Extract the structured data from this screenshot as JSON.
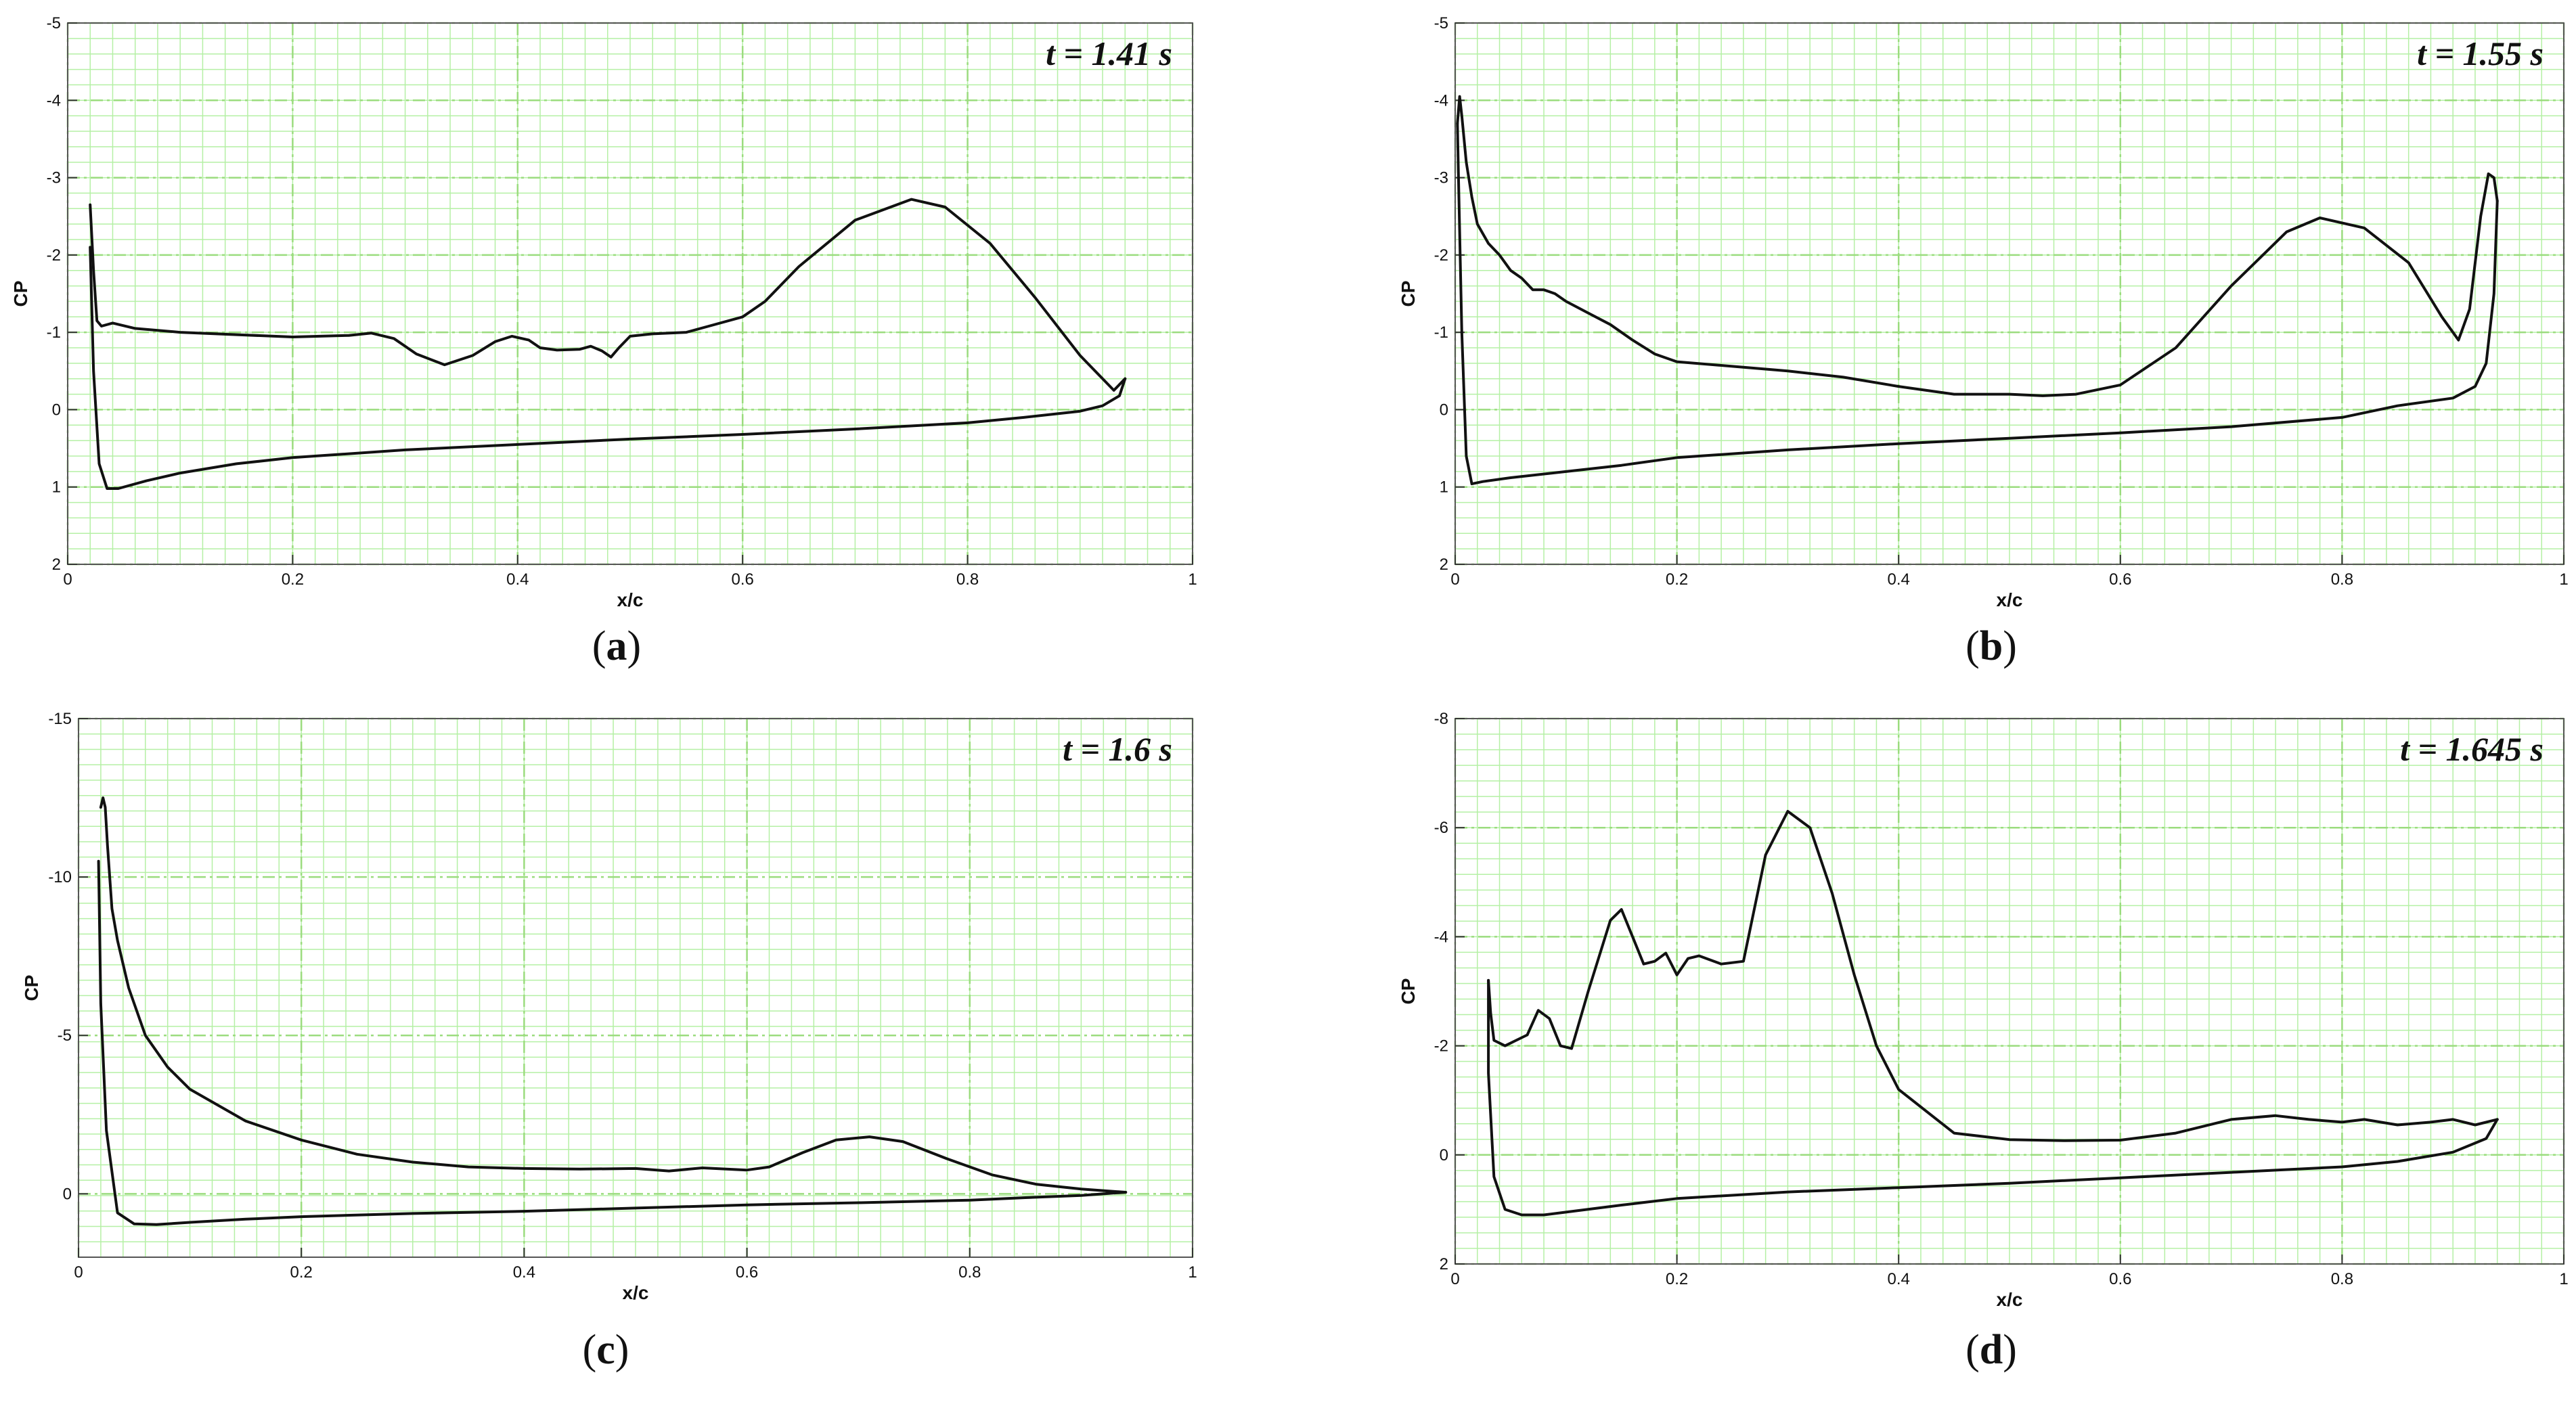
{
  "figure": {
    "background": "#ffffff",
    "grid_color": "#b5f0a5",
    "major_grid_color": "#9bdc7e",
    "curve_color": "#111111"
  },
  "chart_data": [
    {
      "type": "line",
      "panel": "a",
      "caption": "a",
      "annotation": "t = 1.41 s",
      "xlabel": "x/c",
      "ylabel": "CP",
      "xlim": [
        0,
        1
      ],
      "ylim": [
        -5,
        2
      ],
      "y_inverted": true,
      "x_ticks": [
        "0",
        "0.2",
        "0.4",
        "0.6",
        "0.8",
        "1"
      ],
      "y_ticks": [
        "-5",
        "-4",
        "-3",
        "-2",
        "-1",
        "0",
        "1",
        "2"
      ],
      "grid": true,
      "series": [
        {
          "values": [
            [
              0.02,
              -2.65
            ],
            [
              0.023,
              -1.8
            ],
            [
              0.026,
              -1.15
            ],
            [
              0.03,
              -1.08
            ],
            [
              0.04,
              -1.12
            ],
            [
              0.06,
              -1.05
            ],
            [
              0.1,
              -1.0
            ],
            [
              0.15,
              -0.97
            ],
            [
              0.2,
              -0.94
            ],
            [
              0.25,
              -0.96
            ],
            [
              0.27,
              -0.99
            ],
            [
              0.29,
              -0.92
            ],
            [
              0.31,
              -0.72
            ],
            [
              0.335,
              -0.58
            ],
            [
              0.36,
              -0.7
            ],
            [
              0.38,
              -0.88
            ],
            [
              0.395,
              -0.95
            ],
            [
              0.41,
              -0.9
            ],
            [
              0.42,
              -0.8
            ],
            [
              0.435,
              -0.77
            ],
            [
              0.455,
              -0.78
            ],
            [
              0.465,
              -0.82
            ],
            [
              0.475,
              -0.76
            ],
            [
              0.483,
              -0.68
            ],
            [
              0.49,
              -0.8
            ],
            [
              0.5,
              -0.95
            ],
            [
              0.52,
              -0.98
            ],
            [
              0.55,
              -1.0
            ],
            [
              0.57,
              -1.08
            ],
            [
              0.6,
              -1.2
            ],
            [
              0.62,
              -1.4
            ],
            [
              0.65,
              -1.85
            ],
            [
              0.7,
              -2.45
            ],
            [
              0.75,
              -2.72
            ],
            [
              0.78,
              -2.62
            ],
            [
              0.82,
              -2.15
            ],
            [
              0.86,
              -1.45
            ],
            [
              0.9,
              -0.7
            ],
            [
              0.93,
              -0.25
            ],
            [
              0.94,
              -0.4
            ]
          ]
        },
        {
          "values": [
            [
              0.94,
              -0.4
            ],
            [
              0.935,
              -0.18
            ],
            [
              0.92,
              -0.05
            ],
            [
              0.9,
              0.02
            ],
            [
              0.85,
              0.1
            ],
            [
              0.8,
              0.17
            ],
            [
              0.7,
              0.25
            ],
            [
              0.6,
              0.32
            ],
            [
              0.5,
              0.38
            ],
            [
              0.4,
              0.45
            ],
            [
              0.3,
              0.52
            ],
            [
              0.2,
              0.62
            ],
            [
              0.15,
              0.7
            ],
            [
              0.1,
              0.82
            ],
            [
              0.07,
              0.92
            ],
            [
              0.045,
              1.02
            ],
            [
              0.035,
              1.02
            ],
            [
              0.028,
              0.7
            ],
            [
              0.023,
              -0.5
            ],
            [
              0.02,
              -2.1
            ]
          ]
        }
      ]
    },
    {
      "type": "line",
      "panel": "b",
      "caption": "b",
      "annotation": "t = 1.55 s",
      "xlabel": "x/c",
      "ylabel": "CP",
      "xlim": [
        0,
        1
      ],
      "ylim": [
        -5,
        2
      ],
      "y_inverted": true,
      "x_ticks": [
        "0",
        "0.2",
        "0.4",
        "0.6",
        "0.8",
        "1"
      ],
      "y_ticks": [
        "-5",
        "-4",
        "-3",
        "-2",
        "-1",
        "0",
        "1",
        "2"
      ],
      "grid": true,
      "series": [
        {
          "values": [
            [
              0.002,
              -3.7
            ],
            [
              0.004,
              -4.05
            ],
            [
              0.006,
              -3.8
            ],
            [
              0.01,
              -3.2
            ],
            [
              0.015,
              -2.75
            ],
            [
              0.02,
              -2.4
            ],
            [
              0.03,
              -2.15
            ],
            [
              0.04,
              -2.0
            ],
            [
              0.05,
              -1.8
            ],
            [
              0.06,
              -1.7
            ],
            [
              0.07,
              -1.55
            ],
            [
              0.08,
              -1.55
            ],
            [
              0.09,
              -1.5
            ],
            [
              0.1,
              -1.4
            ],
            [
              0.12,
              -1.25
            ],
            [
              0.14,
              -1.1
            ],
            [
              0.16,
              -0.9
            ],
            [
              0.18,
              -0.72
            ],
            [
              0.2,
              -0.62
            ],
            [
              0.25,
              -0.56
            ],
            [
              0.3,
              -0.5
            ],
            [
              0.35,
              -0.42
            ],
            [
              0.4,
              -0.3
            ],
            [
              0.45,
              -0.2
            ],
            [
              0.5,
              -0.2
            ],
            [
              0.53,
              -0.18
            ],
            [
              0.56,
              -0.2
            ],
            [
              0.6,
              -0.32
            ],
            [
              0.65,
              -0.8
            ],
            [
              0.7,
              -1.6
            ],
            [
              0.75,
              -2.3
            ],
            [
              0.78,
              -2.48
            ],
            [
              0.82,
              -2.35
            ],
            [
              0.86,
              -1.9
            ],
            [
              0.89,
              -1.2
            ],
            [
              0.905,
              -0.9
            ],
            [
              0.915,
              -1.3
            ],
            [
              0.925,
              -2.5
            ],
            [
              0.932,
              -3.05
            ],
            [
              0.937,
              -3.0
            ],
            [
              0.94,
              -2.7
            ]
          ]
        },
        {
          "values": [
            [
              0.94,
              -2.7
            ],
            [
              0.937,
              -1.5
            ],
            [
              0.93,
              -0.6
            ],
            [
              0.92,
              -0.3
            ],
            [
              0.9,
              -0.15
            ],
            [
              0.85,
              -0.05
            ],
            [
              0.8,
              0.1
            ],
            [
              0.7,
              0.22
            ],
            [
              0.6,
              0.3
            ],
            [
              0.5,
              0.37
            ],
            [
              0.4,
              0.44
            ],
            [
              0.3,
              0.52
            ],
            [
              0.2,
              0.62
            ],
            [
              0.15,
              0.72
            ],
            [
              0.1,
              0.8
            ],
            [
              0.05,
              0.88
            ],
            [
              0.025,
              0.93
            ],
            [
              0.015,
              0.96
            ],
            [
              0.01,
              0.6
            ],
            [
              0.006,
              -1.0
            ],
            [
              0.003,
              -3.0
            ],
            [
              0.002,
              -3.7
            ]
          ]
        }
      ]
    },
    {
      "type": "line",
      "panel": "c",
      "caption": "c",
      "annotation": "t = 1.6 s",
      "xlabel": "x/c",
      "ylabel": "CP",
      "xlim": [
        0,
        1
      ],
      "ylim": [
        -15,
        2
      ],
      "y_inverted": true,
      "x_ticks": [
        "0",
        "0.2",
        "0.4",
        "0.6",
        "0.8",
        "1"
      ],
      "y_ticks": [
        "-15",
        "-10",
        "-5",
        "0"
      ],
      "grid": true,
      "series": [
        {
          "values": [
            [
              0.02,
              -12.2
            ],
            [
              0.022,
              -12.5
            ],
            [
              0.024,
              -12.2
            ],
            [
              0.026,
              -11.0
            ],
            [
              0.03,
              -9.0
            ],
            [
              0.035,
              -8.0
            ],
            [
              0.045,
              -6.5
            ],
            [
              0.06,
              -5.0
            ],
            [
              0.08,
              -4.0
            ],
            [
              0.1,
              -3.3
            ],
            [
              0.15,
              -2.3
            ],
            [
              0.2,
              -1.7
            ],
            [
              0.25,
              -1.25
            ],
            [
              0.3,
              -1.0
            ],
            [
              0.35,
              -0.85
            ],
            [
              0.4,
              -0.8
            ],
            [
              0.45,
              -0.78
            ],
            [
              0.5,
              -0.8
            ],
            [
              0.53,
              -0.72
            ],
            [
              0.56,
              -0.82
            ],
            [
              0.6,
              -0.75
            ],
            [
              0.62,
              -0.85
            ],
            [
              0.65,
              -1.3
            ],
            [
              0.68,
              -1.7
            ],
            [
              0.71,
              -1.8
            ],
            [
              0.74,
              -1.65
            ],
            [
              0.78,
              -1.1
            ],
            [
              0.82,
              -0.6
            ],
            [
              0.86,
              -0.3
            ],
            [
              0.9,
              -0.15
            ],
            [
              0.94,
              -0.05
            ]
          ]
        },
        {
          "values": [
            [
              0.94,
              -0.05
            ],
            [
              0.9,
              0.05
            ],
            [
              0.85,
              0.12
            ],
            [
              0.8,
              0.2
            ],
            [
              0.7,
              0.28
            ],
            [
              0.6,
              0.35
            ],
            [
              0.5,
              0.45
            ],
            [
              0.4,
              0.55
            ],
            [
              0.3,
              0.62
            ],
            [
              0.2,
              0.72
            ],
            [
              0.15,
              0.8
            ],
            [
              0.1,
              0.9
            ],
            [
              0.07,
              0.97
            ],
            [
              0.05,
              0.95
            ],
            [
              0.035,
              0.6
            ],
            [
              0.025,
              -2.0
            ],
            [
              0.02,
              -6.0
            ],
            [
              0.018,
              -10.5
            ]
          ]
        }
      ]
    },
    {
      "type": "line",
      "panel": "d",
      "caption": "d",
      "annotation": "t = 1.645 s",
      "xlabel": "x/c",
      "ylabel": "CP",
      "xlim": [
        0,
        1
      ],
      "ylim": [
        -8,
        2
      ],
      "y_inverted": true,
      "x_ticks": [
        "0",
        "0.2",
        "0.4",
        "0.6",
        "0.8",
        "1"
      ],
      "y_ticks": [
        "-8",
        "-6",
        "-4",
        "-2",
        "0",
        "2"
      ],
      "grid": true,
      "series": [
        {
          "values": [
            [
              0.03,
              -3.2
            ],
            [
              0.032,
              -2.6
            ],
            [
              0.035,
              -2.1
            ],
            [
              0.045,
              -2.0
            ],
            [
              0.055,
              -2.1
            ],
            [
              0.065,
              -2.2
            ],
            [
              0.075,
              -2.65
            ],
            [
              0.085,
              -2.5
            ],
            [
              0.095,
              -2.0
            ],
            [
              0.105,
              -1.95
            ],
            [
              0.12,
              -3.0
            ],
            [
              0.14,
              -4.3
            ],
            [
              0.15,
              -4.5
            ],
            [
              0.16,
              -4.0
            ],
            [
              0.17,
              -3.5
            ],
            [
              0.18,
              -3.55
            ],
            [
              0.19,
              -3.7
            ],
            [
              0.2,
              -3.3
            ],
            [
              0.21,
              -3.6
            ],
            [
              0.22,
              -3.65
            ],
            [
              0.24,
              -3.5
            ],
            [
              0.26,
              -3.55
            ],
            [
              0.28,
              -5.5
            ],
            [
              0.3,
              -6.3
            ],
            [
              0.32,
              -6.0
            ],
            [
              0.34,
              -4.8
            ],
            [
              0.36,
              -3.3
            ],
            [
              0.38,
              -2.0
            ],
            [
              0.4,
              -1.2
            ],
            [
              0.45,
              -0.4
            ],
            [
              0.5,
              -0.28
            ],
            [
              0.55,
              -0.26
            ],
            [
              0.6,
              -0.27
            ],
            [
              0.65,
              -0.4
            ],
            [
              0.7,
              -0.65
            ],
            [
              0.74,
              -0.72
            ],
            [
              0.77,
              -0.65
            ],
            [
              0.8,
              -0.6
            ],
            [
              0.82,
              -0.65
            ],
            [
              0.85,
              -0.55
            ],
            [
              0.88,
              -0.6
            ],
            [
              0.9,
              -0.65
            ],
            [
              0.92,
              -0.55
            ],
            [
              0.94,
              -0.65
            ]
          ]
        },
        {
          "values": [
            [
              0.94,
              -0.65
            ],
            [
              0.93,
              -0.3
            ],
            [
              0.9,
              -0.05
            ],
            [
              0.85,
              0.12
            ],
            [
              0.8,
              0.22
            ],
            [
              0.7,
              0.32
            ],
            [
              0.6,
              0.42
            ],
            [
              0.5,
              0.52
            ],
            [
              0.4,
              0.6
            ],
            [
              0.3,
              0.68
            ],
            [
              0.2,
              0.8
            ],
            [
              0.15,
              0.92
            ],
            [
              0.1,
              1.05
            ],
            [
              0.08,
              1.1
            ],
            [
              0.06,
              1.1
            ],
            [
              0.045,
              1.0
            ],
            [
              0.035,
              0.4
            ],
            [
              0.03,
              -1.5
            ],
            [
              0.03,
              -3.2
            ]
          ]
        }
      ]
    }
  ]
}
